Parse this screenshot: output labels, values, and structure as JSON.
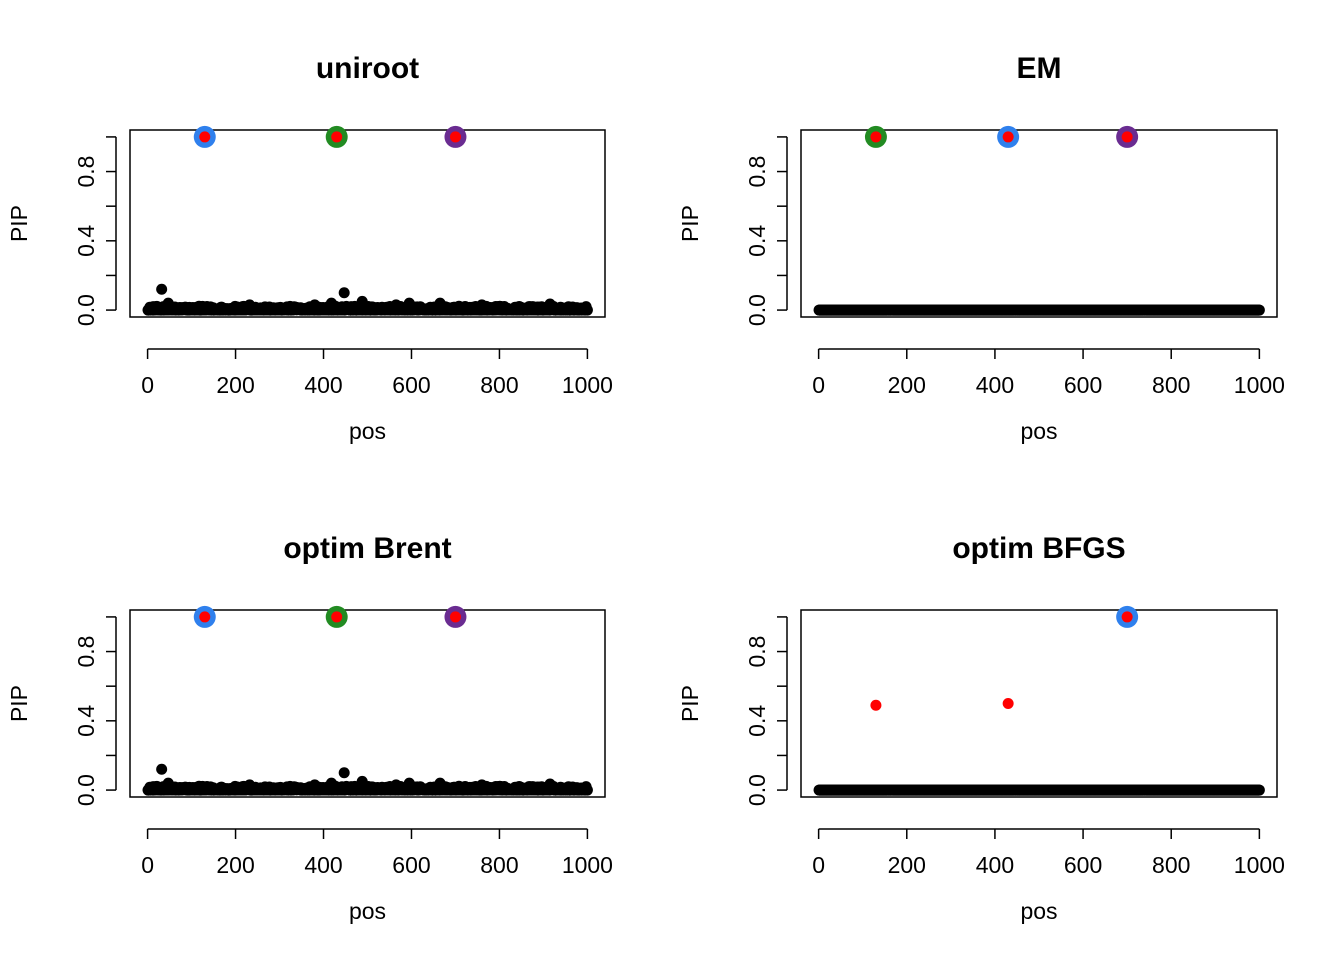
{
  "chart_data": [
    {
      "type": "scatter",
      "title": "uniroot",
      "xlabel": "pos",
      "ylabel": "PIP",
      "xlim": [
        0,
        1000
      ],
      "ylim": [
        0,
        1
      ],
      "x_ticks": [
        0,
        200,
        400,
        600,
        800,
        1000
      ],
      "y_ticks": [
        0.0,
        0.4,
        0.8
      ],
      "y_tick_labels": [
        "0.0",
        "0.4",
        "0.8"
      ],
      "background_noise": "low",
      "highlighted_points": [
        {
          "x": 130,
          "y": 1.0,
          "ring_color": "#2F80ED"
        },
        {
          "x": 430,
          "y": 1.0,
          "ring_color": "#228B22"
        },
        {
          "x": 700,
          "y": 1.0,
          "ring_color": "#6A2C91"
        }
      ],
      "notable_points": [
        {
          "x": 32,
          "y": 0.12
        },
        {
          "x": 47,
          "y": 0.04
        },
        {
          "x": 232,
          "y": 0.03
        },
        {
          "x": 380,
          "y": 0.03
        },
        {
          "x": 418,
          "y": 0.04
        },
        {
          "x": 447,
          "y": 0.1
        },
        {
          "x": 488,
          "y": 0.05
        },
        {
          "x": 565,
          "y": 0.03
        },
        {
          "x": 595,
          "y": 0.04
        },
        {
          "x": 665,
          "y": 0.04
        },
        {
          "x": 760,
          "y": 0.03
        },
        {
          "x": 915,
          "y": 0.035
        }
      ]
    },
    {
      "type": "scatter",
      "title": "EM",
      "xlabel": "pos",
      "ylabel": "PIP",
      "xlim": [
        0,
        1000
      ],
      "ylim": [
        0,
        1
      ],
      "x_ticks": [
        0,
        200,
        400,
        600,
        800,
        1000
      ],
      "y_ticks": [
        0.0,
        0.4,
        0.8
      ],
      "y_tick_labels": [
        "0.0",
        "0.4",
        "0.8"
      ],
      "background_noise": "none",
      "highlighted_points": [
        {
          "x": 130,
          "y": 1.0,
          "ring_color": "#228B22"
        },
        {
          "x": 430,
          "y": 1.0,
          "ring_color": "#2F80ED"
        },
        {
          "x": 700,
          "y": 1.0,
          "ring_color": "#6A2C91"
        }
      ],
      "notable_points": []
    },
    {
      "type": "scatter",
      "title": "optim Brent",
      "xlabel": "pos",
      "ylabel": "PIP",
      "xlim": [
        0,
        1000
      ],
      "ylim": [
        0,
        1
      ],
      "x_ticks": [
        0,
        200,
        400,
        600,
        800,
        1000
      ],
      "y_ticks": [
        0.0,
        0.4,
        0.8
      ],
      "y_tick_labels": [
        "0.0",
        "0.4",
        "0.8"
      ],
      "background_noise": "low",
      "highlighted_points": [
        {
          "x": 130,
          "y": 1.0,
          "ring_color": "#2F80ED"
        },
        {
          "x": 430,
          "y": 1.0,
          "ring_color": "#228B22"
        },
        {
          "x": 700,
          "y": 1.0,
          "ring_color": "#6A2C91"
        }
      ],
      "notable_points": [
        {
          "x": 32,
          "y": 0.12
        },
        {
          "x": 47,
          "y": 0.04
        },
        {
          "x": 232,
          "y": 0.03
        },
        {
          "x": 380,
          "y": 0.03
        },
        {
          "x": 418,
          "y": 0.04
        },
        {
          "x": 447,
          "y": 0.1
        },
        {
          "x": 488,
          "y": 0.05
        },
        {
          "x": 565,
          "y": 0.03
        },
        {
          "x": 595,
          "y": 0.04
        },
        {
          "x": 665,
          "y": 0.04
        },
        {
          "x": 760,
          "y": 0.03
        },
        {
          "x": 915,
          "y": 0.035
        }
      ]
    },
    {
      "type": "scatter",
      "title": "optim BFGS",
      "xlabel": "pos",
      "ylabel": "PIP",
      "xlim": [
        0,
        1000
      ],
      "ylim": [
        0,
        1
      ],
      "x_ticks": [
        0,
        200,
        400,
        600,
        800,
        1000
      ],
      "y_ticks": [
        0.0,
        0.4,
        0.8
      ],
      "y_tick_labels": [
        "0.0",
        "0.4",
        "0.8"
      ],
      "background_noise": "none",
      "highlighted_points": [
        {
          "x": 130,
          "y": 0.49,
          "ring_color": null
        },
        {
          "x": 430,
          "y": 0.5,
          "ring_color": null
        },
        {
          "x": 700,
          "y": 1.0,
          "ring_color": "#2F80ED"
        }
      ],
      "notable_points": []
    }
  ]
}
